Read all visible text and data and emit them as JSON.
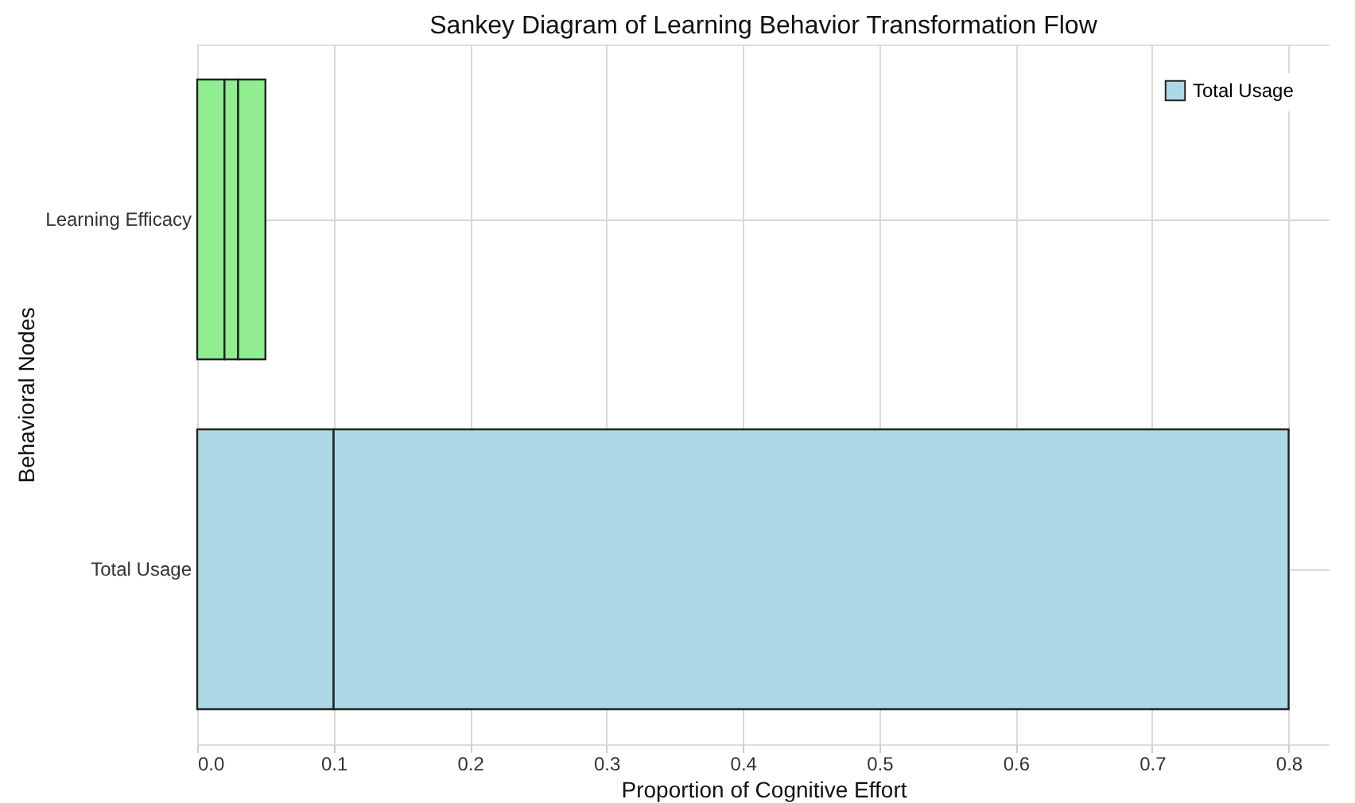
{
  "chart_data": {
    "type": "bar",
    "orientation": "horizontal",
    "stacked": true,
    "title": "Sankey Diagram of Learning Behavior Transformation Flow",
    "xlabel": "Proportion of Cognitive Effort",
    "ylabel": "Behavioral Nodes",
    "categories": [
      "Learning Efficacy",
      "Total Usage"
    ],
    "series": [
      {
        "name": "Total Usage",
        "color": "#add8e6",
        "values": [
          null,
          0.1
        ]
      },
      {
        "color": "#add8e6",
        "values": [
          null,
          0.7
        ]
      },
      {
        "color": "#90ee90",
        "values": [
          0.02,
          null
        ]
      },
      {
        "color": "#90ee90",
        "values": [
          0.01,
          null
        ]
      },
      {
        "color": "#90ee90",
        "values": [
          0.02,
          null
        ]
      }
    ],
    "xlim": [
      0,
      0.83
    ],
    "xticks": [
      {
        "value": 0,
        "label": "0.0"
      },
      {
        "value": 0.1,
        "label": "0.1"
      },
      {
        "value": 0.2,
        "label": "0.2"
      },
      {
        "value": 0.3,
        "label": "0.3"
      },
      {
        "value": 0.4,
        "label": "0.4"
      },
      {
        "value": 0.5,
        "label": "0.5"
      },
      {
        "value": 0.6,
        "label": "0.6"
      },
      {
        "value": 0.7,
        "label": "0.7"
      },
      {
        "value": 0.8,
        "label": "0.8"
      }
    ],
    "grid": true,
    "legend": "top right"
  }
}
